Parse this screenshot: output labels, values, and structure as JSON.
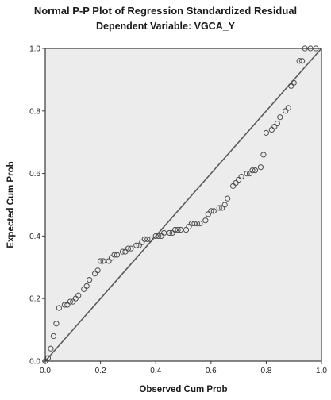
{
  "chart_data": {
    "type": "scatter",
    "title": "Normal P-P Plot of Regression Standardized Residual",
    "subtitle": "Dependent Variable: VGCA_Y",
    "xlabel": "Observed Cum Prob",
    "ylabel": "Expected Cum Prob",
    "xlim": [
      0.0,
      1.0
    ],
    "ylim": [
      0.0,
      1.0
    ],
    "x_ticks": [
      "0.0",
      "0.2",
      "0.4",
      "0.6",
      "0.8",
      "1.0"
    ],
    "y_ticks": [
      "0.0",
      "0.2",
      "0.4",
      "0.6",
      "0.8",
      "1.0"
    ],
    "reference_line": [
      [
        0.0,
        0.0
      ],
      [
        1.0,
        1.0
      ]
    ],
    "grid": false,
    "colors": {
      "plot_background": "#ececec",
      "marker_stroke": "#4d4d4d",
      "line": "#5a5a5a",
      "frame": "#3a3a3a"
    },
    "points": [
      [
        0.0,
        0.0
      ],
      [
        0.01,
        0.01
      ],
      [
        0.02,
        0.04
      ],
      [
        0.03,
        0.08
      ],
      [
        0.04,
        0.12
      ],
      [
        0.05,
        0.17
      ],
      [
        0.07,
        0.18
      ],
      [
        0.08,
        0.18
      ],
      [
        0.09,
        0.19
      ],
      [
        0.1,
        0.19
      ],
      [
        0.11,
        0.2
      ],
      [
        0.12,
        0.21
      ],
      [
        0.14,
        0.23
      ],
      [
        0.15,
        0.24
      ],
      [
        0.16,
        0.26
      ],
      [
        0.18,
        0.28
      ],
      [
        0.19,
        0.29
      ],
      [
        0.2,
        0.32
      ],
      [
        0.21,
        0.32
      ],
      [
        0.23,
        0.32
      ],
      [
        0.24,
        0.33
      ],
      [
        0.25,
        0.34
      ],
      [
        0.26,
        0.34
      ],
      [
        0.28,
        0.35
      ],
      [
        0.29,
        0.35
      ],
      [
        0.3,
        0.36
      ],
      [
        0.31,
        0.36
      ],
      [
        0.33,
        0.37
      ],
      [
        0.34,
        0.37
      ],
      [
        0.35,
        0.38
      ],
      [
        0.36,
        0.39
      ],
      [
        0.37,
        0.39
      ],
      [
        0.38,
        0.39
      ],
      [
        0.4,
        0.4
      ],
      [
        0.41,
        0.4
      ],
      [
        0.42,
        0.4
      ],
      [
        0.43,
        0.41
      ],
      [
        0.45,
        0.41
      ],
      [
        0.46,
        0.41
      ],
      [
        0.47,
        0.42
      ],
      [
        0.48,
        0.42
      ],
      [
        0.49,
        0.42
      ],
      [
        0.51,
        0.42
      ],
      [
        0.52,
        0.43
      ],
      [
        0.53,
        0.44
      ],
      [
        0.54,
        0.44
      ],
      [
        0.55,
        0.44
      ],
      [
        0.56,
        0.44
      ],
      [
        0.58,
        0.45
      ],
      [
        0.59,
        0.47
      ],
      [
        0.6,
        0.48
      ],
      [
        0.61,
        0.48
      ],
      [
        0.63,
        0.49
      ],
      [
        0.64,
        0.49
      ],
      [
        0.65,
        0.5
      ],
      [
        0.66,
        0.52
      ],
      [
        0.68,
        0.56
      ],
      [
        0.69,
        0.57
      ],
      [
        0.7,
        0.58
      ],
      [
        0.71,
        0.59
      ],
      [
        0.73,
        0.6
      ],
      [
        0.74,
        0.6
      ],
      [
        0.75,
        0.61
      ],
      [
        0.76,
        0.61
      ],
      [
        0.78,
        0.62
      ],
      [
        0.79,
        0.66
      ],
      [
        0.8,
        0.73
      ],
      [
        0.82,
        0.74
      ],
      [
        0.83,
        0.75
      ],
      [
        0.84,
        0.76
      ],
      [
        0.85,
        0.78
      ],
      [
        0.87,
        0.8
      ],
      [
        0.88,
        0.81
      ],
      [
        0.89,
        0.88
      ],
      [
        0.9,
        0.89
      ],
      [
        0.92,
        0.96
      ],
      [
        0.93,
        0.96
      ],
      [
        0.94,
        1.0
      ],
      [
        0.96,
        1.0
      ],
      [
        0.98,
        1.0
      ]
    ]
  }
}
